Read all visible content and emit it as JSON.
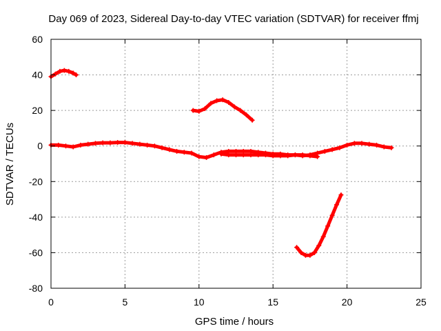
{
  "chart_data": {
    "type": "scatter",
    "title": "Day 069 of 2023, Sidereal Day-to-day VTEC variation (SDTVAR) for receiver ffmj",
    "xlabel": "GPS time / hours",
    "ylabel": "SDTVAR / TECUs",
    "xlim": [
      0,
      25
    ],
    "ylim": [
      -80,
      60
    ],
    "xticks": [
      0,
      5,
      10,
      15,
      20,
      25
    ],
    "yticks": [
      -80,
      -60,
      -40,
      -20,
      0,
      20,
      40,
      60
    ],
    "grid": true,
    "legend": "none",
    "marker": "plus",
    "colors": {
      "series": "#ff0000",
      "axes": "#000000",
      "grid": "#9a9a9a"
    },
    "series": [
      {
        "name": "track-near-zero",
        "x": [
          0,
          0.5,
          1,
          1.5,
          2,
          2.5,
          3,
          3.5,
          4,
          4.5,
          5,
          5.5,
          6,
          6.5,
          7,
          7.5,
          8,
          8.5,
          9,
          9.5,
          10,
          10.5,
          11,
          11.5,
          12,
          12.5,
          13,
          13.5,
          14,
          14.5,
          15,
          15.5,
          16,
          16.5,
          17,
          17.5,
          18,
          18.5,
          19,
          19.5,
          20,
          20.5,
          21,
          21.5,
          22,
          22.5,
          23
        ],
        "y": [
          0.5,
          0.5,
          0,
          -0.5,
          0.5,
          1,
          1.5,
          1.8,
          1.8,
          2,
          2,
          1.5,
          1,
          0.5,
          0,
          -1,
          -2,
          -3,
          -3.5,
          -4,
          -6,
          -6.5,
          -5,
          -3.5,
          -3,
          -3,
          -3,
          -3,
          -3.5,
          -4,
          -4.5,
          -4.5,
          -5,
          -5,
          -5.5,
          -5,
          -4,
          -3,
          -2,
          -1,
          0.5,
          1.5,
          1.5,
          1,
          0.5,
          -0.5,
          -1
        ]
      },
      {
        "name": "track-near-40",
        "x": [
          0,
          0.3,
          0.6,
          0.9,
          1.2,
          1.5,
          1.7
        ],
        "y": [
          39,
          40.5,
          42,
          42.5,
          42,
          41,
          40
        ]
      },
      {
        "name": "track-near-20",
        "x": [
          9.6,
          10,
          10.4,
          10.8,
          11.2,
          11.6,
          12,
          12.4,
          12.8,
          13.2,
          13.6
        ],
        "y": [
          20,
          19.5,
          21,
          24,
          25.5,
          26,
          24.5,
          22,
          20,
          17.5,
          14.5
        ]
      },
      {
        "name": "track-near-minus-60",
        "x": [
          16.6,
          16.9,
          17.2,
          17.5,
          17.8,
          18.1,
          18.4,
          18.7,
          19,
          19.3,
          19.6
        ],
        "y": [
          -57,
          -60,
          -61.5,
          -61.5,
          -60,
          -56,
          -51,
          -45,
          -39,
          -33,
          -27.5
        ]
      },
      {
        "name": "track-near-minus-5",
        "x": [
          11.5,
          12,
          12.5,
          13,
          13.5,
          14,
          14.5,
          15,
          15.5,
          16,
          16.5,
          17,
          17.5,
          18
        ],
        "y": [
          -4.5,
          -5,
          -5,
          -5,
          -5,
          -5,
          -5,
          -5.5,
          -5.5,
          -5.5,
          -5,
          -5,
          -5.5,
          -6
        ]
      }
    ]
  }
}
